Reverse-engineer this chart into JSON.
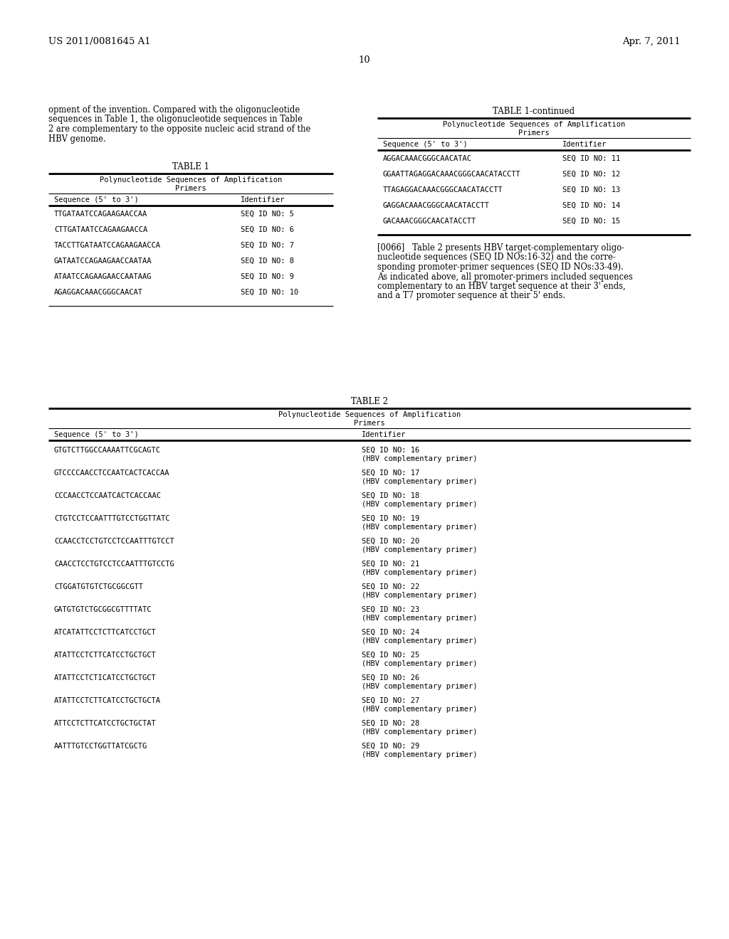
{
  "header_left": "US 2011/0081645 A1",
  "header_right": "Apr. 7, 2011",
  "page_number": "10",
  "background_color": "#ffffff",
  "body_text_lines": [
    "opment of the invention. Compared with the oligonucleotide",
    "sequences in Table 1, the oligonucleotide sequences in Table",
    "2 are complementary to the opposite nucleic acid strand of the",
    "HBV genome."
  ],
  "table1_title": "TABLE 1",
  "table1_subtitle1": "Polynucleotide Sequences of Amplification",
  "table1_subtitle2": "Primers",
  "table1_col1": "Sequence (5' to 3')",
  "table1_col2": "Identifier",
  "table1_rows": [
    [
      "TTGATAATCCAGAAGAACCAA",
      "SEQ ID NO: 5"
    ],
    [
      "CTTGATAATCCAGAAGAACCA",
      "SEQ ID NO: 6"
    ],
    [
      "TACCTTGATAATCCAGAAGAACCA",
      "SEQ ID NO: 7"
    ],
    [
      "GATAATCCAGAAGAACCAATAA",
      "SEQ ID NO: 8"
    ],
    [
      "ATAATCCAGAAGAACCAATAAG",
      "SEQ ID NO: 9"
    ],
    [
      "AGAGGACAAACGGGCAACAT",
      "SEQ ID NO: 10"
    ]
  ],
  "table1c_title": "TABLE 1-continued",
  "table1c_subtitle1": "Polynucleotide Sequences of Amplification",
  "table1c_subtitle2": "Primers",
  "table1c_col1": "Sequence (5' to 3')",
  "table1c_col2": "Identifier",
  "table1c_rows": [
    [
      "AGGACAAACGGGCAACATAC",
      "SEQ ID NO: 11"
    ],
    [
      "GGAATTAGAGGACAAACGGGCAACATACCTT",
      "SEQ ID NO: 12"
    ],
    [
      "TTAGAGGACAAACGGGCAACATACCTT",
      "SEQ ID NO: 13"
    ],
    [
      "GAGGACAAACGGGCAACATACCTT",
      "SEQ ID NO: 14"
    ],
    [
      "GACAAACGGGCAACATACCTT",
      "SEQ ID NO: 15"
    ]
  ],
  "para_lines": [
    "[0066]   Table 2 presents HBV target-complementary oligo-",
    "nucleotide sequences (SEQ ID NOs:16-32) and the corre-",
    "sponding promoter-primer sequences (SEQ ID NOs:33-49).",
    "As indicated above, all promoter-primers included sequences",
    "complementary to an HBV target sequence at their 3' ends,",
    "and a T7 promoter sequence at their 5' ends."
  ],
  "table2_title": "TABLE 2",
  "table2_subtitle1": "Polynucleotide Sequences of Amplification",
  "table2_subtitle2": "Primers",
  "table2_col1": "Sequence (5' to 3')",
  "table2_col2": "Identifier",
  "table2_rows": [
    [
      "GTGTCTTGGCCAAAATTCGCAGTC",
      "SEQ ID NO: 16",
      "(HBV complementary primer)"
    ],
    [
      "GTCCCCAACCTCCAATCACTCACCAA",
      "SEQ ID NO: 17",
      "(HBV complementary primer)"
    ],
    [
      "CCCAACCTCCAATCACTCACCAAC",
      "SEQ ID NO: 18",
      "(HBV complementary primer)"
    ],
    [
      "CTGTCCTCCAATTTGTCCTGGTTATC",
      "SEQ ID NO: 19",
      "(HBV complementary primer)"
    ],
    [
      "CCAACCTCCTGTCCTCCAATTTGTCCT",
      "SEQ ID NO: 20",
      "(HBV complementary primer)"
    ],
    [
      "CAACCTCCTGTCCTCCAATTTGTCCTG",
      "SEQ ID NO: 21",
      "(HBV complementary primer)"
    ],
    [
      "CTGGATGTGTCTGCGGCGTT",
      "SEQ ID NO: 22",
      "(HBV complementary primer)"
    ],
    [
      "GATGTGTCTGCGGCGTTTTATC",
      "SEQ ID NO: 23",
      "(HBV complementary primer)"
    ],
    [
      "ATCATATTCCTCTTCATCCTGCT",
      "SEQ ID NO: 24",
      "(HBV complementary primer)"
    ],
    [
      "ATATTCCTCTTCATCCTGCTGCT",
      "SEQ ID NO: 25",
      "(HBV complementary primer)"
    ],
    [
      "ATATTCCTCTICATCCTGCTGCT",
      "SEQ ID NO: 26",
      "(HBV complementary primer)"
    ],
    [
      "ATATTCCTCTTCATCCTGCTGCTA",
      "SEQ ID NO: 27",
      "(HBV complementary primer)"
    ],
    [
      "ATTCCTCTTCATCCTGCTGCTAT",
      "SEQ ID NO: 28",
      "(HBV complementary primer)"
    ],
    [
      "AATTTGTCCTGGTTATCGCTG",
      "SEQ ID NO: 29",
      "(HBV complementary primer)"
    ]
  ]
}
